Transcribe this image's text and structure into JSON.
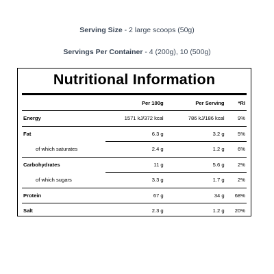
{
  "serving_size": {
    "label": "Serving Size",
    "value": "- 2 large scoops (50g)"
  },
  "servings_per_container": {
    "label": "Servings Per Container",
    "value": "- 4 (200g), 10 (500g)"
  },
  "panel": {
    "title": "Nutritional Information",
    "headers": {
      "name": "",
      "per_100g": "Per 100g",
      "per_serving": "Per Serving",
      "ri": "*RI"
    },
    "rows": [
      {
        "name": "Energy",
        "per_100g": "1571 kJ/372 kcal",
        "per_serving": "786 kJ/186 kcal",
        "ri": "9%",
        "type": "main"
      },
      {
        "name": "Fat",
        "per_100g": "6.3 g",
        "per_serving": "3.2 g",
        "ri": "5%",
        "type": "main"
      },
      {
        "name": "of which saturates",
        "per_100g": "2.4 g",
        "per_serving": "1.2 g",
        "ri": "6%",
        "type": "sub"
      },
      {
        "name": "Carbohydrates",
        "per_100g": "11 g",
        "per_serving": "5.6 g",
        "ri": "2%",
        "type": "main"
      },
      {
        "name": "of which sugars",
        "per_100g": "3.3 g",
        "per_serving": "1.7 g",
        "ri": "2%",
        "type": "sub"
      },
      {
        "name": "Protein",
        "per_100g": "67 g",
        "per_serving": "34 g",
        "ri": "68%",
        "type": "main"
      },
      {
        "name": "Salt",
        "per_100g": "2.3 g",
        "per_serving": "1.2 g",
        "ri": "20%",
        "type": "main"
      }
    ]
  }
}
